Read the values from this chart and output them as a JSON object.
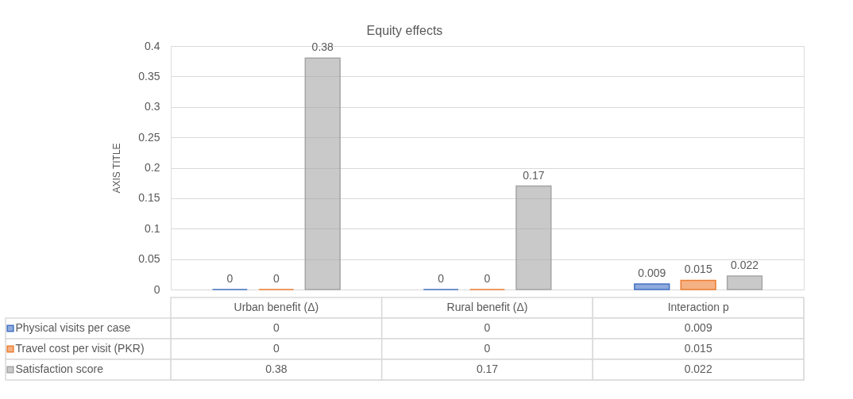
{
  "chart_data": {
    "type": "bar",
    "title": "Equity effects",
    "ylabel": "AXIS TITLE",
    "categories": [
      "Urban benefit (Δ)",
      "Rural benefit (Δ)",
      "Interaction p"
    ],
    "series": [
      {
        "name": "Physical visits per case",
        "color": "#4472c4",
        "values": [
          0,
          0,
          0.009
        ],
        "value_labels": [
          "0",
          "0",
          "0.009"
        ]
      },
      {
        "name": "Travel cost per visit (PKR)",
        "color": "#ed7d31",
        "values": [
          0,
          0,
          0.015
        ],
        "value_labels": [
          "0",
          "0",
          "0.015"
        ]
      },
      {
        "name": "Satisfaction score",
        "color": "#a5a5a5",
        "values": [
          0.38,
          0.17,
          0.022
        ],
        "value_labels": [
          "0.38",
          "0.17",
          "0.022"
        ]
      }
    ],
    "ylim": [
      0,
      0.4
    ],
    "yticks": [
      0,
      0.05,
      0.1,
      0.15,
      0.2,
      0.25,
      0.3,
      0.35,
      0.4
    ],
    "grid": "y",
    "legend": "bottom"
  }
}
